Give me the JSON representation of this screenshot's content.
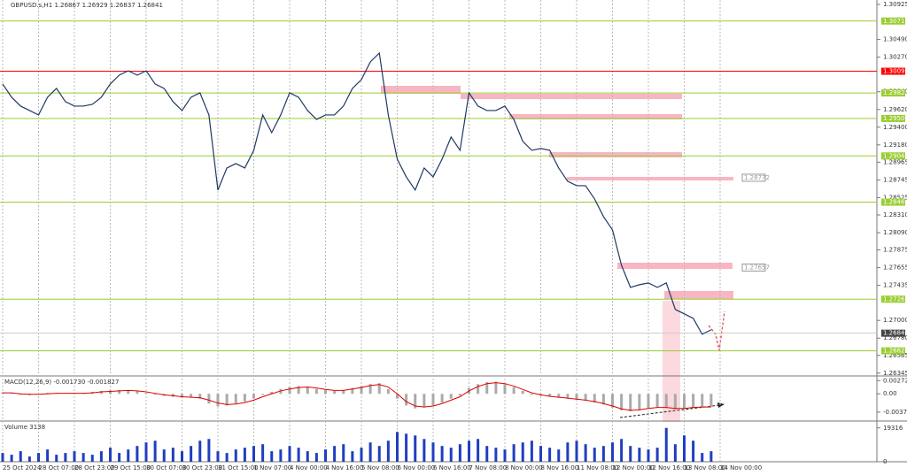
{
  "chart_data": [
    {
      "type": "line",
      "title": "GBPUSD.s,H1 1.26867 1.26929 1.26837 1.26841",
      "color": "#1f3864",
      "categories": [
        "25 Oct 2024",
        null,
        null,
        null,
        "28 Oct 07:00",
        null,
        null,
        null,
        "28 Oct 23:00",
        null,
        null,
        null,
        "29 Oct 15:00",
        null,
        null,
        null,
        "30 Oct 07:00",
        null,
        null,
        null,
        "30 Oct 23:00",
        null,
        null,
        null,
        "31 Oct 15:00",
        null,
        null,
        null,
        "1 Nov 07:00",
        null,
        null,
        null,
        "4 Nov 00:00",
        null,
        null,
        null,
        "4 Nov 16:00",
        null,
        null,
        null,
        "5 Nov 08:00",
        null,
        null,
        null,
        "6 Nov 00:00",
        null,
        null,
        null,
        "6 Nov 16:00",
        null,
        null,
        null,
        "7 Nov 08:00",
        null,
        null,
        null,
        "8 Nov 00:00",
        null,
        null,
        null,
        "8 Nov 16:00",
        null,
        null,
        null,
        "11 Nov 08:00",
        null,
        null,
        null,
        "12 Nov 00:00",
        null,
        null,
        null,
        "12 Nov 16:00",
        null,
        null,
        null,
        "13 Nov 08:00",
        null,
        null,
        null,
        "14 Nov 00:00",
        null,
        null,
        null
      ],
      "values": [
        1.29937,
        1.29772,
        1.29662,
        1.29607,
        1.29552,
        1.29772,
        1.29882,
        1.29717,
        1.29662,
        1.29662,
        1.29684,
        1.29772,
        1.29937,
        1.30046,
        1.30101,
        1.30046,
        1.30101,
        1.29937,
        1.29882,
        1.29717,
        1.29607,
        1.29772,
        1.29827,
        1.29552,
        1.28619,
        1.28893,
        1.28948,
        1.28893,
        1.29113,
        1.29552,
        1.29332,
        1.29552,
        1.29827,
        1.29772,
        1.29607,
        1.29497,
        1.29552,
        1.29552,
        1.29662,
        1.29882,
        1.29991,
        1.30211,
        1.30321,
        1.29552,
        1.29003,
        1.28783,
        1.28619,
        1.28893,
        1.28783,
        1.29003,
        1.29278,
        1.29113,
        1.29827,
        1.29662,
        1.29607,
        1.29607,
        1.29662,
        1.29497,
        1.29223,
        1.29113,
        1.29135,
        1.29113,
        1.28893,
        1.28728,
        1.28673,
        1.28673,
        1.28509,
        1.28289,
        1.28124,
        1.27685,
        1.2741,
        1.27443,
        1.27465,
        1.2741,
        1.27465,
        1.27136,
        1.27081,
        1.27026,
        1.26828,
        1.26883,
        null,
        null,
        null,
        null
      ],
      "ylim": [
        1.2631,
        1.3098
      ],
      "yticks": [
        1.30925,
        {
          "value": 1.3049,
          "label": "1.30490"
        },
        {
          "value": 1.3027,
          "label": "1.30270"
        },
        {
          "value": 1.2984,
          "label": "1.29840"
        },
        {
          "value": 1.2962,
          "label": "1.29620"
        },
        {
          "value": 1.294,
          "label": "1.29400"
        },
        {
          "value": 1.2918,
          "label": "1.29180"
        },
        1.28965,
        1.28745,
        1.28525,
        {
          "value": 1.2831,
          "label": "1.28310"
        },
        {
          "value": 1.2809,
          "label": "1.28090"
        },
        1.27875,
        1.27655,
        1.27435,
        {
          "value": 1.27,
          "label": "1.27000"
        },
        {
          "value": 1.2678,
          "label": "1.26780"
        },
        1.26565,
        1.26345
      ],
      "grid": true,
      "levels": [
        {
          "value": 1.30719,
          "color": "#9acd32",
          "style": "line"
        },
        {
          "value": 1.30095,
          "color": "#ff0000",
          "style": "line"
        },
        {
          "value": 1.29825,
          "color": "#9acd32",
          "style": "line"
        },
        {
          "value": 1.29508,
          "color": "#9acd32",
          "style": "line"
        },
        {
          "value": 1.29043,
          "color": "#9acd32",
          "style": "line"
        },
        {
          "value": 1.28469,
          "color": "#9acd32",
          "style": "line"
        },
        {
          "value": 1.27263,
          "color": "#9acd32",
          "style": "line"
        },
        {
          "value": 1.26622,
          "color": "#9acd32",
          "style": "line"
        },
        {
          "value": 1.28772,
          "color": "#999999",
          "style": "box"
        },
        {
          "value": 1.27657,
          "color": "#999999",
          "style": "box"
        },
        {
          "value": 1.26841,
          "color": "#444444",
          "style": "current"
        }
      ]
    },
    {
      "type": "macd",
      "title": "MACD(12,26,9) -0.001730 -0.001827",
      "ylim": [
        -0.0056,
        0.0035
      ],
      "yticks": [
        0.002725,
        {
          "value": 0,
          "label": "0.00"
        },
        -0.003766
      ],
      "series": [
        {
          "color": "#aaaaaa",
          "values": [
            0.0003,
            0.0001,
            -0.0002,
            -0.0003,
            0.0,
            0.0002,
            0.0001,
            0.0,
            0.0001,
            0.0002,
            0.0004,
            0.0006,
            0.0007,
            0.0008,
            0.0007,
            0.0005,
            0.0002,
            -0.0002,
            -0.0004,
            -0.0006,
            -0.0008,
            -0.0006,
            -0.001,
            -0.002,
            -0.0026,
            -0.0024,
            -0.002,
            -0.0016,
            -0.001,
            -0.0002,
            0.0004,
            0.001,
            0.0014,
            0.0016,
            0.0014,
            0.001,
            0.0008,
            0.0006,
            0.0008,
            0.0012,
            0.0016,
            0.002,
            0.0022,
            0.001,
            -0.001,
            -0.0024,
            -0.003,
            -0.0028,
            -0.0024,
            -0.0018,
            -0.001,
            -0.0004,
            0.0012,
            0.002,
            0.0024,
            0.0025,
            0.002,
            0.0014,
            0.0006,
            -0.0002,
            -0.0004,
            -0.0006,
            -0.0008,
            -0.001,
            -0.0012,
            -0.0014,
            -0.0018,
            -0.0022,
            -0.0028,
            -0.0034,
            -0.0036,
            -0.0034,
            -0.003,
            -0.0028,
            -0.0029,
            -0.0032,
            -0.003,
            -0.0028,
            -0.0027,
            -0.0027,
            null,
            null,
            null,
            null
          ]
        },
        {
          "color": "#e00000",
          "values": [
            0.0002,
            0.0002,
            0.0,
            -0.0001,
            -0.0001,
            0.0,
            0.0001,
            0.0001,
            0.0001,
            0.0001,
            0.0002,
            0.0004,
            0.0005,
            0.0006,
            0.0007,
            0.0006,
            0.0004,
            0.0001,
            -0.0002,
            -0.0004,
            -0.0006,
            -0.0007,
            -0.0008,
            -0.0013,
            -0.0019,
            -0.0022,
            -0.0021,
            -0.0018,
            -0.0013,
            -0.0006,
            0.0,
            0.0006,
            0.001,
            0.0013,
            0.0014,
            0.0012,
            0.0009,
            0.0007,
            0.0007,
            0.001,
            0.0013,
            0.0017,
            0.0019,
            0.0014,
            0.0,
            -0.0016,
            -0.0025,
            -0.0027,
            -0.0025,
            -0.002,
            -0.0013,
            -0.0006,
            0.0006,
            0.0015,
            0.0021,
            0.0023,
            0.0021,
            0.0016,
            0.0009,
            0.0002,
            -0.0002,
            -0.0005,
            -0.0007,
            -0.0009,
            -0.0011,
            -0.0013,
            -0.0016,
            -0.002,
            -0.0025,
            -0.0031,
            -0.0034,
            -0.0033,
            -0.003,
            -0.0028,
            -0.0028,
            -0.003,
            -0.003,
            -0.0028,
            -0.0027,
            -0.0027,
            null,
            null,
            null,
            null
          ]
        }
      ]
    },
    {
      "type": "bar",
      "title": "Volume 3138",
      "color": "#1f3fbf",
      "ylim": [
        0,
        22725
      ],
      "yticks": [
        19316,
        0
      ],
      "values": [
        5000,
        4000,
        6000,
        3000,
        5000,
        7000,
        4000,
        5000,
        6000,
        5000,
        4000,
        6000,
        8000,
        5000,
        7000,
        9000,
        11000,
        12000,
        7000,
        8000,
        6000,
        9000,
        12000,
        13000,
        6000,
        5000,
        7000,
        8000,
        9000,
        10000,
        6000,
        7000,
        9000,
        8000,
        6000,
        5000,
        7000,
        9000,
        10000,
        6000,
        8000,
        11000,
        9000,
        12000,
        17000,
        16000,
        15000,
        13000,
        11000,
        9000,
        8000,
        10000,
        12000,
        13000,
        9000,
        8000,
        7000,
        10000,
        11000,
        12000,
        9000,
        8000,
        7000,
        11000,
        12000,
        10000,
        8000,
        9000,
        11000,
        13000,
        9000,
        8000,
        7000,
        8000,
        19316,
        10000,
        15000,
        12000,
        5000,
        6000,
        null,
        null,
        null,
        null
      ]
    }
  ]
}
